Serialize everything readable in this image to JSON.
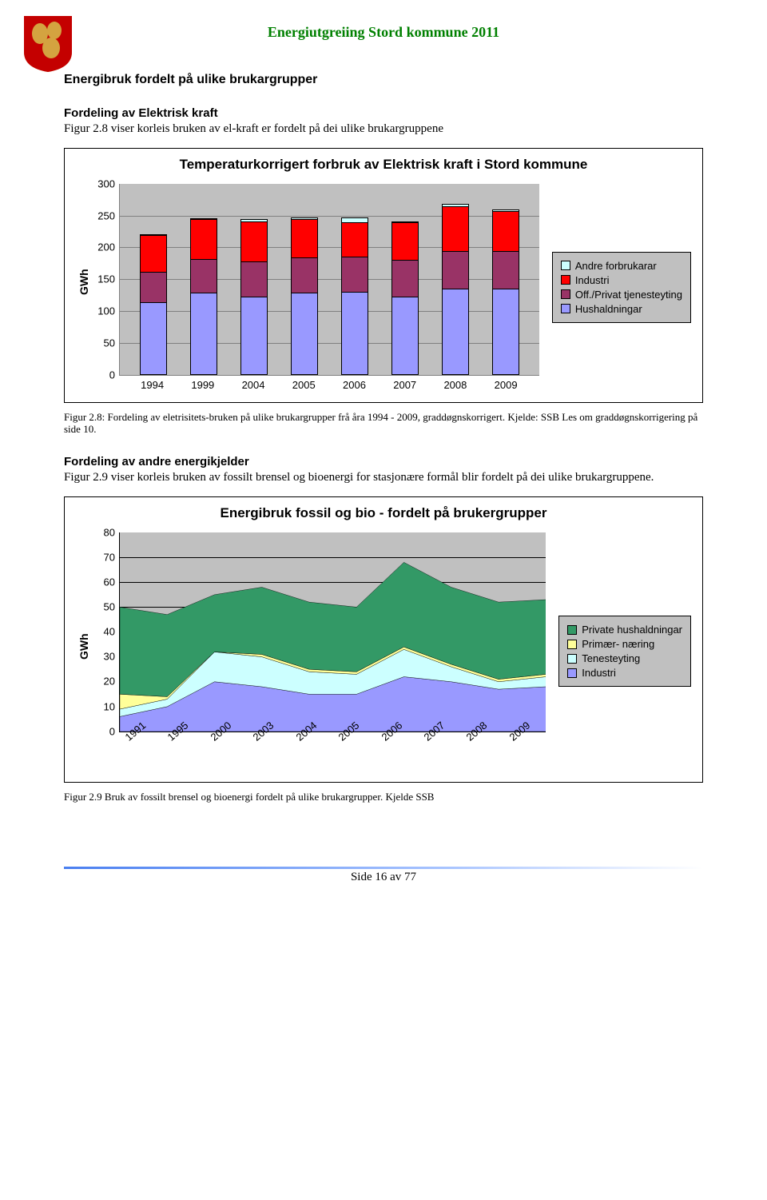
{
  "header": {
    "title": "Energiutgreiing Stord kommune 2011",
    "title_color": "#008000"
  },
  "section1": {
    "heading": "Energibruk fordelt på ulike brukargrupper",
    "subheading": "Fordeling av Elektrisk kraft",
    "intro": "Figur 2.8 viser korleis bruken av el-kraft er fordelt på dei ulike brukargruppene"
  },
  "bar_chart": {
    "type": "stacked-bar",
    "title": "Temperaturkorrigert forbruk av Elektrisk kraft i Stord kommune",
    "ylabel": "GWh",
    "ylim": [
      0,
      300
    ],
    "ytick_step": 50,
    "background_color": "#c0c0c0",
    "grid_color": "#808080",
    "categories": [
      "1994",
      "1999",
      "2004",
      "2005",
      "2006",
      "2007",
      "2008",
      "2009"
    ],
    "series": [
      {
        "name": "Hushaldningar",
        "color": "#9999ff"
      },
      {
        "name": "Off./Privat tjenesteyting",
        "color": "#993366"
      },
      {
        "name": "Industri",
        "color": "#ff0000"
      },
      {
        "name": "Andre forbrukarar",
        "color": "#ccffff"
      }
    ],
    "stacks": [
      {
        "hushald": 113,
        "off": 48,
        "industri": 57,
        "andre": 2
      },
      {
        "hushald": 128,
        "off": 53,
        "industri": 62,
        "andre": 2
      },
      {
        "hushald": 122,
        "off": 55,
        "industri": 63,
        "andre": 3
      },
      {
        "hushald": 128,
        "off": 55,
        "industri": 60,
        "andre": 3
      },
      {
        "hushald": 130,
        "off": 55,
        "industri": 53,
        "andre": 8
      },
      {
        "hushald": 122,
        "off": 58,
        "industri": 58,
        "andre": 2
      },
      {
        "hushald": 135,
        "off": 58,
        "industri": 70,
        "andre": 4
      },
      {
        "hushald": 135,
        "off": 58,
        "industri": 63,
        "andre": 2
      }
    ],
    "legend_order": [
      "Andre forbrukarar",
      "Industri",
      "Off./Privat tjenesteyting",
      "Hushaldningar"
    ]
  },
  "caption1": "Figur 2.8: Fordeling av eletrisitets-bruken på ulike brukargrupper frå åra 1994 - 2009, graddøgnskorrigert. Kjelde: SSB  Les om graddøgnskorrigering på side 10.",
  "section2": {
    "subheading": "Fordeling av andre energikjelder",
    "intro": "Figur 2.9 viser korleis bruken av fossilt brensel og bioenergi for stasjonære formål blir fordelt på dei ulike brukargruppene."
  },
  "area_chart": {
    "type": "stacked-area",
    "title": "Energibruk fossil og bio -  fordelt på brukergrupper",
    "ylabel": "GWh",
    "ylim": [
      0,
      80
    ],
    "ytick_step": 10,
    "background_color": "#c0c0c0",
    "years": [
      "1991",
      "1995",
      "2000",
      "2003",
      "2004",
      "2005",
      "2006",
      "2007",
      "2008",
      "2009"
    ],
    "series": [
      {
        "name": "Private  hushaldningar",
        "color": "#339966"
      },
      {
        "name": "Primær- næring",
        "color": "#ffff99"
      },
      {
        "name": "Tenesteyting",
        "color": "#ccffff"
      },
      {
        "name": "Industri",
        "color": "#9999ff"
      }
    ],
    "points": {
      "industri": [
        6,
        10,
        20,
        18,
        15,
        15,
        22,
        20,
        17,
        18
      ],
      "teneste": [
        9,
        13,
        32,
        30,
        24,
        23,
        33,
        26,
        20,
        22
      ],
      "primaer": [
        15,
        14,
        32,
        31,
        25,
        24,
        34,
        27,
        21,
        23
      ],
      "hushald": [
        50,
        47,
        55,
        58,
        52,
        50,
        68,
        58,
        52,
        53
      ]
    }
  },
  "caption2": "Figur 2.9 Bruk av fossilt brensel og bioenergi fordelt på ulike brukargrupper. Kjelde SSB",
  "footer": {
    "text": "Side 16 av 77"
  }
}
